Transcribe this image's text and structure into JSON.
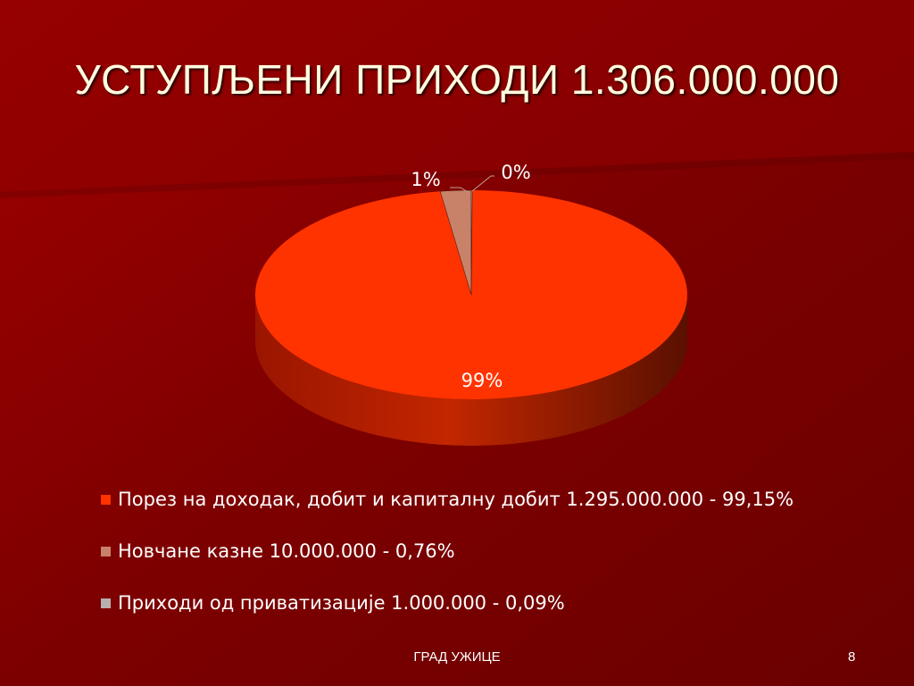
{
  "slide": {
    "title": "УСТУПЉЕНИ ПРИХОДИ 1.306.000.000",
    "footer": "ГРАД УЖИЦЕ",
    "page_number": "8"
  },
  "colors": {
    "background": "#7a0000",
    "slice_1": "#ff3300",
    "slice_2": "#c8826a",
    "slice_3": "#b8b0ae"
  },
  "chart_data": {
    "type": "pie",
    "title": "",
    "categories": [
      "Порез на доходак, добит и капиталну добит 1.295.000.000 - 99,15%",
      "Новчане казне 10.000.000 - 0,76%",
      "Приходи од приватизације 1.000.000 - 0,09%"
    ],
    "values": [
      1295000000,
      10000000,
      1000000
    ],
    "data_labels": [
      "99%",
      "1%",
      "0%"
    ],
    "legend_position": "bottom"
  }
}
